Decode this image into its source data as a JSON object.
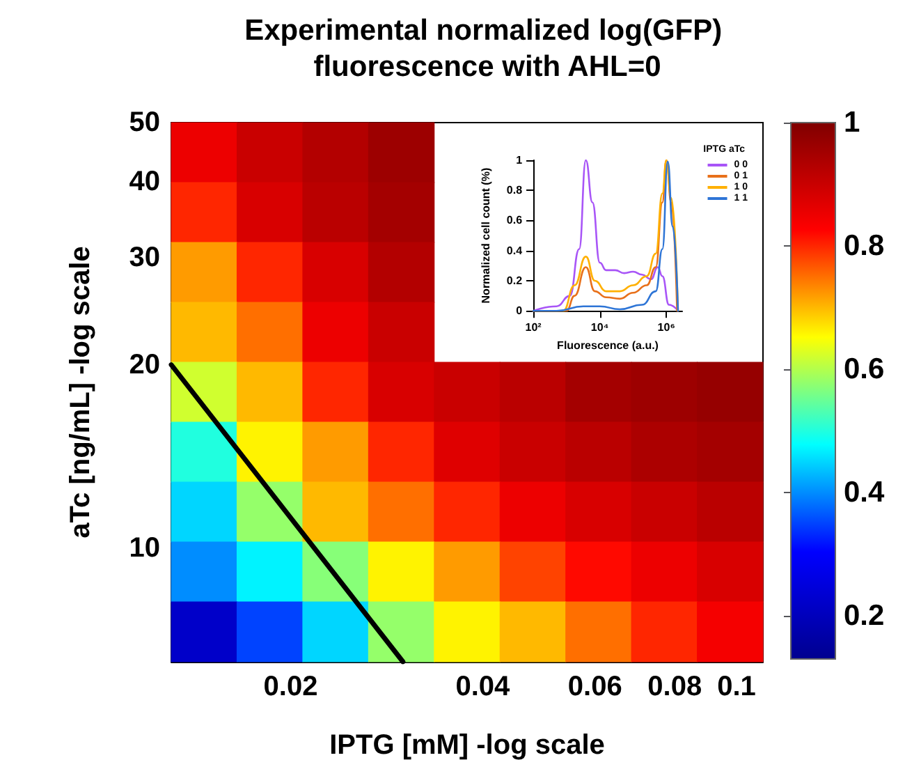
{
  "chart_data": [
    {
      "type": "heatmap",
      "title": "Experimental normalized log(GFP) fluorescence with AHL=0",
      "xlabel": "IPTG [mM] -log scale",
      "ylabel": "aTc [ng/mL] -log scale",
      "log": "xy",
      "xlim": [
        0.013,
        0.11
      ],
      "xticks": [
        0.02,
        0.04,
        0.06,
        0.08,
        0.1
      ],
      "ylim": [
        6.5,
        50
      ],
      "yticks": [
        10,
        20,
        30,
        40,
        50
      ],
      "clim": [
        0.13,
        1
      ],
      "cticks": [
        0.2,
        0.4,
        0.6,
        0.8,
        1
      ],
      "cells": [
        [
          0.85,
          0.9,
          0.93,
          0.96,
          null,
          null,
          null,
          null,
          null
        ],
        [
          0.8,
          0.88,
          0.92,
          0.95,
          null,
          null,
          null,
          null,
          null
        ],
        [
          0.72,
          0.8,
          0.88,
          0.93,
          null,
          null,
          null,
          null,
          null
        ],
        [
          0.7,
          0.75,
          0.85,
          0.9,
          null,
          null,
          null,
          null,
          null
        ],
        [
          0.62,
          0.7,
          0.8,
          0.88,
          0.9,
          0.92,
          0.95,
          0.96,
          0.97
        ],
        [
          0.5,
          0.66,
          0.72,
          0.8,
          0.87,
          0.9,
          0.92,
          0.94,
          0.95
        ],
        [
          0.45,
          0.58,
          0.7,
          0.75,
          0.8,
          0.85,
          0.88,
          0.9,
          0.92
        ],
        [
          0.4,
          0.47,
          0.57,
          0.66,
          0.72,
          0.78,
          0.82,
          0.85,
          0.88
        ],
        [
          0.22,
          0.35,
          0.45,
          0.58,
          0.66,
          0.7,
          0.75,
          0.8,
          0.84
        ]
      ],
      "series": [
        {
          "type": "line",
          "color": "#000000",
          "x": [
            0.013,
            0.03
          ],
          "values": [
            20,
            6.5
          ]
        }
      ]
    },
    {
      "type": "line",
      "xlabel": "Fluorescence (a.u.)",
      "ylabel": "Normalized cell count (%)",
      "log": "x",
      "xlim": [
        100,
        3000000
      ],
      "xticks": [
        {
          "value": 100,
          "label": "10²"
        },
        {
          "value": 10000,
          "label": "10⁴"
        },
        {
          "value": 1000000,
          "label": "10⁶"
        }
      ],
      "ylim": [
        0,
        1
      ],
      "yticks": [
        0,
        0.2,
        0.4,
        0.6,
        0.8,
        1
      ],
      "legend": "top right",
      "legend_title": "IPTG aTc",
      "series": [
        {
          "name": "0 0",
          "color": "#a855f7",
          "x": [
            100,
            500,
            1260,
            2400,
            3800,
            6000,
            10000,
            15500,
            29000,
            54000,
            100000,
            186000,
            347000,
            550000,
            760000,
            1200000,
            2240000
          ],
          "values": [
            0,
            0.03,
            0.1,
            0.41,
            1,
            0.72,
            0.32,
            0.27,
            0.27,
            0.25,
            0.26,
            0.24,
            0.21,
            0.29,
            0.23,
            0.04,
            0
          ]
        },
        {
          "name": "0 1",
          "color": "#e8701a",
          "x": [
            100,
            1000,
            1740,
            3800,
            7100,
            15500,
            40000,
            100000,
            257000,
            480000,
            760000,
            1000000,
            1400000,
            2100000
          ],
          "values": [
            0,
            0,
            0.1,
            0.29,
            0.13,
            0.09,
            0.08,
            0.12,
            0.17,
            0.29,
            0.72,
            1,
            0.72,
            0
          ]
        },
        {
          "name": "1 0",
          "color": "#ffb000",
          "x": [
            100,
            800,
            1740,
            3800,
            7100,
            15500,
            40000,
            100000,
            257000,
            480000,
            760000,
            1000000,
            1400000,
            2240000
          ],
          "values": [
            0,
            0,
            0.17,
            0.36,
            0.2,
            0.13,
            0.13,
            0.17,
            0.23,
            0.38,
            0.78,
            1,
            0.75,
            0
          ]
        },
        {
          "name": "1 1",
          "color": "#2e75d6",
          "x": [
            100,
            500,
            3200,
            10000,
            40000,
            186000,
            480000,
            760000,
            1100000,
            1550000,
            2240000
          ],
          "values": [
            0,
            0,
            0.03,
            0.03,
            0.01,
            0.04,
            0.13,
            0.41,
            0.99,
            0.56,
            0
          ]
        }
      ]
    }
  ]
}
